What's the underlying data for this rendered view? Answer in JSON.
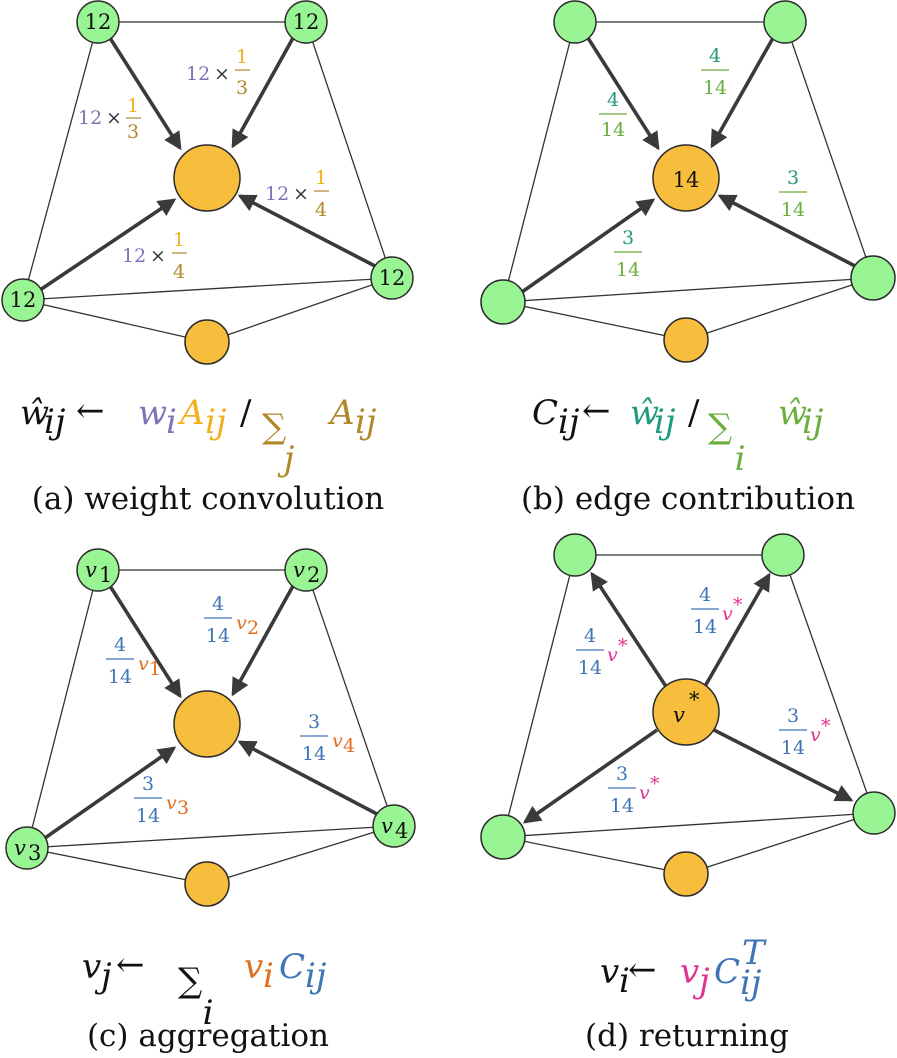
{
  "colors": {
    "green_node": "#99f593",
    "orange_node": "#f7bd3c",
    "purple": "#7b74b8",
    "gold": "#b2872a",
    "yellow": "#f2b01e",
    "teal": "#1f9a7c",
    "lightgreen": "#6aae3d",
    "blue": "#3f75b6",
    "orange_text": "#e07020",
    "pink": "#e0338f"
  },
  "panel_a": {
    "caption": "(a) weight convolution",
    "node_labels": [
      "12",
      "12",
      "12",
      "12"
    ],
    "edge_labels": {
      "w": "12",
      "times": "×",
      "num": "1",
      "den3": "3",
      "den4": "4"
    },
    "formula": {
      "lhs": "ŵ",
      "lhs_sub": "ij",
      "arrow": "←",
      "w": "w",
      "w_sub": "i",
      "A": "A",
      "A_sub": "ij",
      "slash": "/",
      "sum": "∑",
      "sum_idx": "j",
      "A2": "A",
      "A2_sub": "ij"
    }
  },
  "panel_b": {
    "caption": "(b) edge contribution",
    "center_label": "14",
    "fractions": {
      "n4": "4",
      "n3": "3",
      "den": "14"
    },
    "formula": {
      "lhs": "C",
      "lhs_sub": "ij",
      "arrow": "←",
      "w": "ŵ",
      "w_sub": "ij",
      "slash": "/",
      "sum": "∑",
      "sum_idx": "i",
      "w2": "ŵ",
      "w2_sub": "ij"
    }
  },
  "panel_c": {
    "caption": "(c) aggregation",
    "node_labels": {
      "v1": "v",
      "v1_sub": "1",
      "v2": "v",
      "v2_sub": "2",
      "v3": "v",
      "v3_sub": "3",
      "v4": "v",
      "v4_sub": "4"
    },
    "fractions": {
      "n4": "4",
      "n3": "3",
      "den": "14",
      "v": "v",
      "s1": "1",
      "s2": "2",
      "s3": "3",
      "s4": "4"
    },
    "formula": {
      "lhs": "v",
      "lhs_sub": "j",
      "arrow": "←",
      "sum": "∑",
      "sum_idx": "i",
      "v": "v",
      "v_sub": "i",
      "C": "C",
      "C_sub": "ij"
    }
  },
  "panel_d": {
    "caption": "(d) returning",
    "center_label": "v",
    "center_sup": "*",
    "fractions": {
      "n4": "4",
      "n3": "3",
      "den": "14",
      "v": "v",
      "star": "*"
    },
    "formula": {
      "lhs": "v",
      "lhs_sub": "i",
      "arrow": "←",
      "v": "v",
      "v_sub": "j",
      "C": "C",
      "C_sup": "T",
      "C_sub": "ij"
    }
  }
}
